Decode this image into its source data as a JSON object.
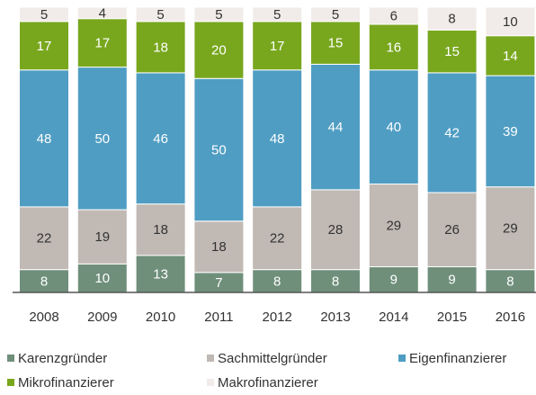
{
  "chart_data": {
    "type": "stacked_bar",
    "categories": [
      "2008",
      "2009",
      "2010",
      "2011",
      "2012",
      "2013",
      "2014",
      "2015",
      "2016"
    ],
    "series": [
      {
        "name": "Karenzgründer",
        "color": "#6f8f7b",
        "label_color": "#ffffff",
        "values": [
          8,
          10,
          13,
          7,
          8,
          8,
          9,
          9,
          8
        ]
      },
      {
        "name": "Sachmittelgründer",
        "color": "#c0b9b4",
        "label_color": "#333333",
        "values": [
          22,
          19,
          18,
          18,
          22,
          28,
          29,
          26,
          29
        ]
      },
      {
        "name": "Eigenfinanzierer",
        "color": "#4f9dc3",
        "label_color": "#ffffff",
        "values": [
          48,
          50,
          46,
          50,
          48,
          44,
          40,
          42,
          39
        ]
      },
      {
        "name": "Mikrofinanzierer",
        "color": "#78a71e",
        "label_color": "#ffffff",
        "values": [
          17,
          17,
          18,
          20,
          17,
          15,
          16,
          15,
          14
        ]
      },
      {
        "name": "Makrofinanzierer",
        "color": "#f1ece9",
        "label_color": "#333333",
        "values": [
          5,
          4,
          5,
          5,
          5,
          5,
          6,
          8,
          10
        ]
      }
    ],
    "ylim": [
      0,
      100
    ]
  }
}
